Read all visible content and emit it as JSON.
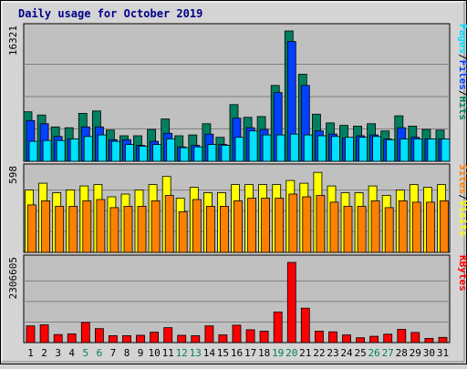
{
  "chart_data": {
    "type": "bar",
    "title": "Daily usage for October 2019",
    "categories": [
      "1",
      "2",
      "3",
      "4",
      "5",
      "6",
      "7",
      "8",
      "9",
      "10",
      "11",
      "12",
      "13",
      "14",
      "15",
      "16",
      "17",
      "18",
      "19",
      "20",
      "21",
      "22",
      "23",
      "24",
      "25",
      "26",
      "27",
      "28",
      "29",
      "30",
      "31"
    ],
    "weekend_days": [
      "5",
      "6",
      "12",
      "13",
      "19",
      "20",
      "26",
      "27"
    ],
    "panels": [
      {
        "id": "pages-files-hits",
        "ymax_label": "16321",
        "ylim": [
          0,
          16321
        ],
        "legend": [
          {
            "label": "Pages",
            "color": "#00e0ff"
          },
          {
            "label": "Files",
            "color": "#0040ff"
          },
          {
            "label": "Hits",
            "color": "#008060"
          }
        ],
        "separator": "/",
        "series": [
          {
            "name": "Hits",
            "color": "#008060",
            "values": [
              6200,
              5800,
              4300,
              4200,
              6000,
              6300,
              3900,
              3200,
              3200,
              4000,
              5300,
              3200,
              3300,
              4700,
              3000,
              7100,
              5500,
              5600,
              9500,
              16321,
              10900,
              5900,
              4800,
              4500,
              4400,
              4700,
              3800,
              5700,
              4400,
              4000,
              3900
            ]
          },
          {
            "name": "Files",
            "color": "#0040ff",
            "values": [
              5100,
              4700,
              3100,
              2800,
              4300,
              4300,
              2700,
              2700,
              2000,
              2500,
              3500,
              1800,
              2000,
              3400,
              2100,
              5400,
              4200,
              4000,
              8600,
              15000,
              9500,
              3800,
              3400,
              2900,
              3200,
              3300,
              2800,
              4200,
              3000,
              2800,
              2800
            ]
          },
          {
            "name": "Pages",
            "color": "#00e0ff",
            "values": [
              2500,
              2600,
              2600,
              2800,
              3100,
              3300,
              2500,
              2100,
              1900,
              2100,
              2800,
              1700,
              1800,
              2100,
              2000,
              3000,
              3800,
              3300,
              3300,
              3400,
              3300,
              3200,
              3100,
              3000,
              3000,
              3100,
              2700,
              2800,
              2800,
              2800,
              2800
            ]
          }
        ]
      },
      {
        "id": "sites-visits",
        "ymax_label": "598",
        "ylim": [
          0,
          598
        ],
        "legend": [
          {
            "label": "Sites",
            "color": "#ff8000"
          },
          {
            "label": "Visits",
            "color": "#ffff00"
          }
        ],
        "separator": "/",
        "series": [
          {
            "name": "Visits",
            "color": "#ffff00",
            "values": [
              460,
              510,
              440,
              460,
              490,
              500,
              410,
              430,
              460,
              500,
              560,
              400,
              480,
              440,
              440,
              500,
              500,
              500,
              500,
              530,
              510,
              590,
              490,
              440,
              440,
              490,
              420,
              460,
              500,
              480,
              500
            ]
          },
          {
            "name": "Sites",
            "color": "#ff8000",
            "values": [
              350,
              380,
              340,
              340,
              380,
              390,
              330,
              340,
              340,
              380,
              420,
              300,
              390,
              340,
              340,
              380,
              400,
              400,
              400,
              430,
              410,
              420,
              370,
              340,
              340,
              380,
              330,
              380,
              370,
              370,
              380
            ]
          }
        ]
      },
      {
        "id": "kbytes",
        "ymax_label": "2306605",
        "ylim": [
          0,
          2306605
        ],
        "legend": [
          {
            "label": "KBytes",
            "color": "#ff0000"
          }
        ],
        "separator": "",
        "series": [
          {
            "name": "KBytes",
            "color": "#ff0000",
            "values": [
              480000,
              510000,
              230000,
              250000,
              580000,
              400000,
              200000,
              200000,
              210000,
              300000,
              430000,
              210000,
              200000,
              480000,
              220000,
              500000,
              370000,
              330000,
              880000,
              2306605,
              990000,
              330000,
              310000,
              220000,
              140000,
              180000,
              240000,
              380000,
              290000,
              120000,
              150000
            ]
          }
        ]
      }
    ]
  },
  "colors": {
    "background": "#d4d4d4",
    "plot_background": "#c0c0c0",
    "gridline": "#808080",
    "weekday_tick": "#000000",
    "weekend_tick": "#00805c",
    "bar_outline": "#000000"
  }
}
